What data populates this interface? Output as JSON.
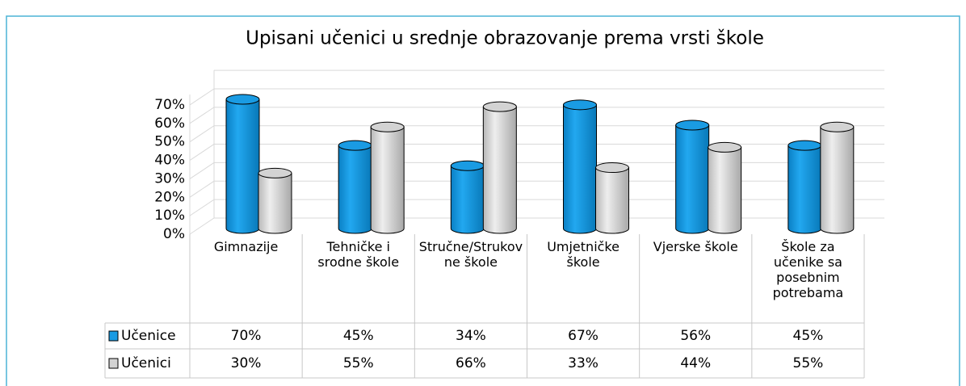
{
  "chart_data": {
    "type": "bar",
    "title": "Upisani učenici u srednje obrazovanje prema vrsti škole",
    "categories": [
      "Gimnazije",
      "Tehničke i srodne škole",
      "Stručne/Strukovne škole",
      "Umjetničke škole",
      "Vjerske škole",
      "Škole za učenike sa posebnim potrebama"
    ],
    "series": [
      {
        "name": "Učenice",
        "color": "#1a9be3",
        "values": [
          70,
          45,
          34,
          67,
          56,
          45
        ],
        "value_labels": [
          "70%",
          "45%",
          "34%",
          "67%",
          "56%",
          "45%"
        ]
      },
      {
        "name": "Učenici",
        "color": "#d3d3d3",
        "values": [
          30,
          55,
          66,
          33,
          44,
          55
        ],
        "value_labels": [
          "30%",
          "55%",
          "66%",
          "33%",
          "44%",
          "55%"
        ]
      }
    ],
    "ylim": [
      0,
      80
    ],
    "yticks": [
      {
        "value": 0,
        "label": "0%"
      },
      {
        "value": 10,
        "label": "10%"
      },
      {
        "value": 20,
        "label": "20%"
      },
      {
        "value": 30,
        "label": "30%"
      },
      {
        "value": 40,
        "label": "40%"
      },
      {
        "value": 50,
        "label": "50%"
      },
      {
        "value": 60,
        "label": "60%"
      },
      {
        "value": 70,
        "label": "70%"
      }
    ],
    "grid": true
  }
}
